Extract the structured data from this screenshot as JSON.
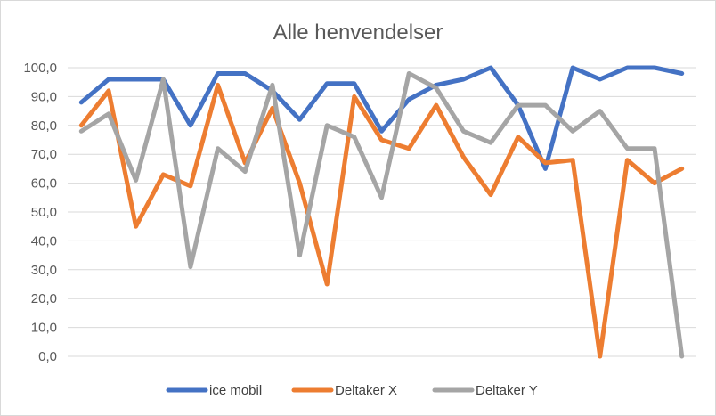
{
  "chart_data": {
    "type": "line",
    "title": "Alle henvendelser",
    "ylim": [
      0,
      100
    ],
    "y_ticks": [
      "0,0",
      "10,0",
      "20,0",
      "30,0",
      "40,0",
      "50,0",
      "60,0",
      "70,0",
      "80,0",
      "90,0",
      "100,0"
    ],
    "x_count": 23,
    "grid": "horizontal",
    "legend_position": "bottom",
    "series": [
      {
        "name": "ice mobil",
        "color": "#4472C4",
        "values": [
          88,
          96,
          96,
          96,
          80,
          98,
          98,
          92,
          82,
          94.5,
          94.5,
          78,
          89,
          94,
          96,
          100,
          87,
          65,
          100,
          96,
          100,
          100,
          98
        ]
      },
      {
        "name": "Deltaker X",
        "color": "#ED7D31",
        "values": [
          80,
          92,
          45,
          63,
          59,
          94,
          67,
          86,
          60,
          25,
          90,
          75,
          72,
          87,
          69,
          56,
          76,
          67,
          68,
          0,
          68,
          60,
          65
        ]
      },
      {
        "name": "Deltaker Y",
        "color": "#A5A5A5",
        "values": [
          78,
          84,
          61,
          96,
          31,
          72,
          64,
          94,
          35,
          80,
          76,
          55,
          98,
          93,
          78,
          74,
          87,
          87,
          78,
          85,
          72,
          72,
          0
        ]
      }
    ]
  }
}
